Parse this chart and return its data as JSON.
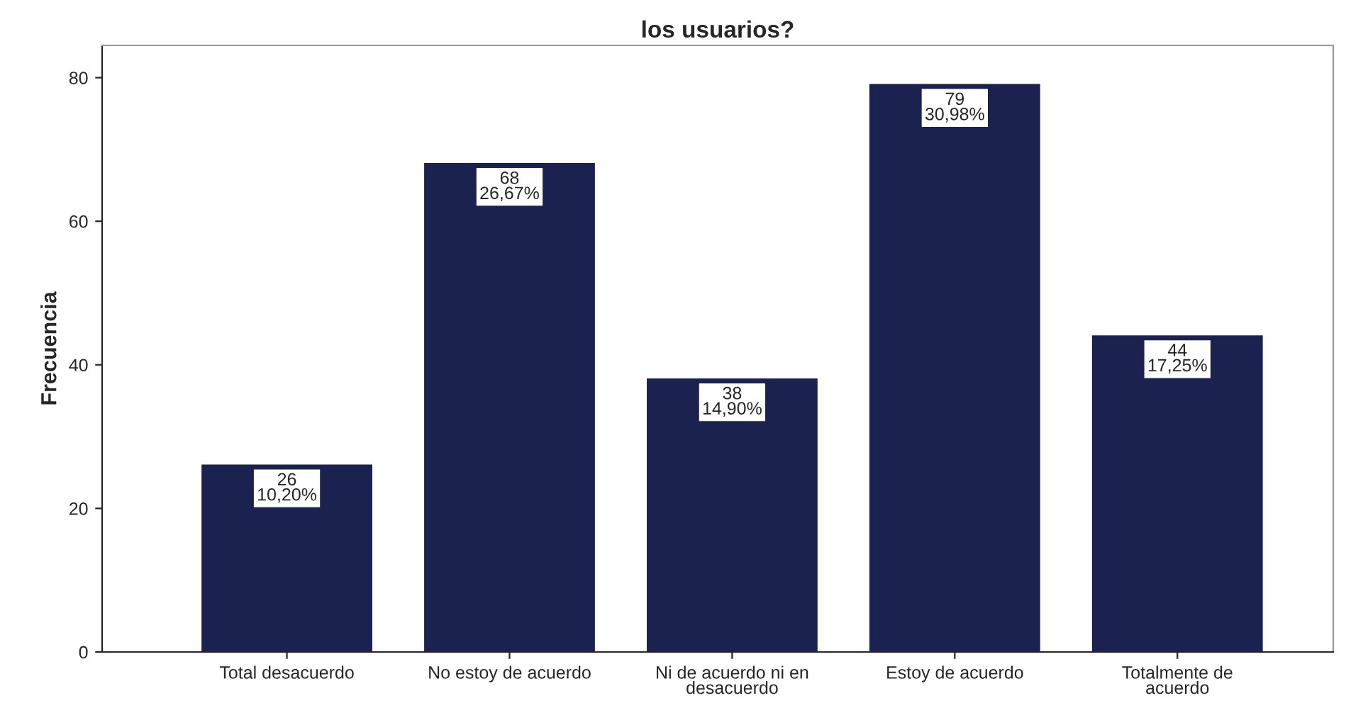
{
  "chart_data": {
    "type": "bar",
    "title": "los usuarios?",
    "ylabel": "Frecuencia",
    "categories": [
      "Total desacuerdo",
      "No estoy de acuerdo",
      "Ni de acuerdo ni en\ndesacuerdo",
      "Estoy de acuerdo",
      "Totalmente de\nacuerdo"
    ],
    "values": [
      26,
      68,
      38,
      79,
      44
    ],
    "value_labels": [
      "26\n10,20%",
      "68\n26,67%",
      "38\n14,90%",
      "79\n30,98%",
      "44\n17,25%"
    ],
    "color": "#1b2250",
    "ylim": [
      0,
      84.5
    ],
    "yticks": [
      0,
      20,
      40,
      60,
      80
    ],
    "grid": false,
    "legend": false
  }
}
